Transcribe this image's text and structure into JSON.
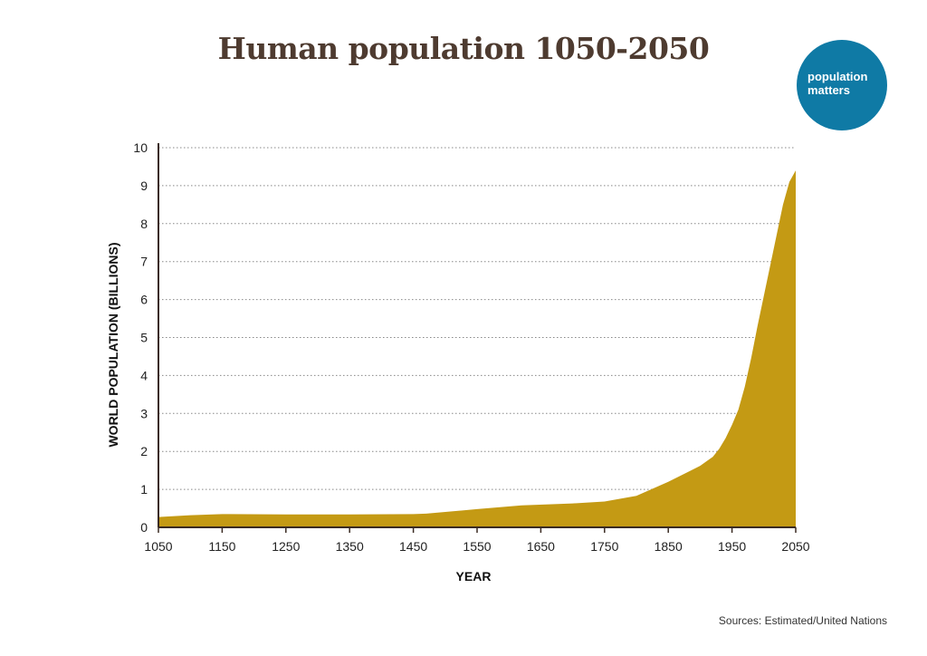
{
  "title": "Human population 1050-2050",
  "logo": {
    "line1": "population",
    "line2": "matters",
    "color": "#0f7aa5"
  },
  "source": "Sources: Estimated/United Nations",
  "chart_data": {
    "type": "area",
    "title": "Human population 1050-2050",
    "xlabel": "YEAR",
    "ylabel": "WORLD POPULATION (BILLIONS)",
    "xlim": [
      1050,
      2050
    ],
    "ylim": [
      0,
      10
    ],
    "xticks": [
      1050,
      1150,
      1250,
      1350,
      1450,
      1550,
      1650,
      1750,
      1850,
      1950,
      2050
    ],
    "yticks": [
      0,
      1,
      2,
      3,
      4,
      5,
      6,
      7,
      8,
      9,
      10
    ],
    "grid": "horizontal dotted",
    "fill_color": "#c49a14",
    "series": [
      {
        "x": [
          1050,
          1100,
          1150,
          1250,
          1350,
          1450,
          1470,
          1550,
          1620,
          1700,
          1750,
          1800,
          1850,
          1900,
          1920,
          1930,
          1940,
          1950,
          1960,
          1970,
          1980,
          1990,
          2000,
          2010,
          2020,
          2030,
          2040,
          2050
        ],
        "y": [
          0.27,
          0.32,
          0.35,
          0.34,
          0.34,
          0.35,
          0.36,
          0.48,
          0.58,
          0.63,
          0.68,
          0.83,
          1.2,
          1.62,
          1.86,
          2.07,
          2.35,
          2.7,
          3.1,
          3.7,
          4.45,
          5.3,
          6.1,
          6.9,
          7.7,
          8.5,
          9.1,
          9.4
        ]
      }
    ]
  }
}
